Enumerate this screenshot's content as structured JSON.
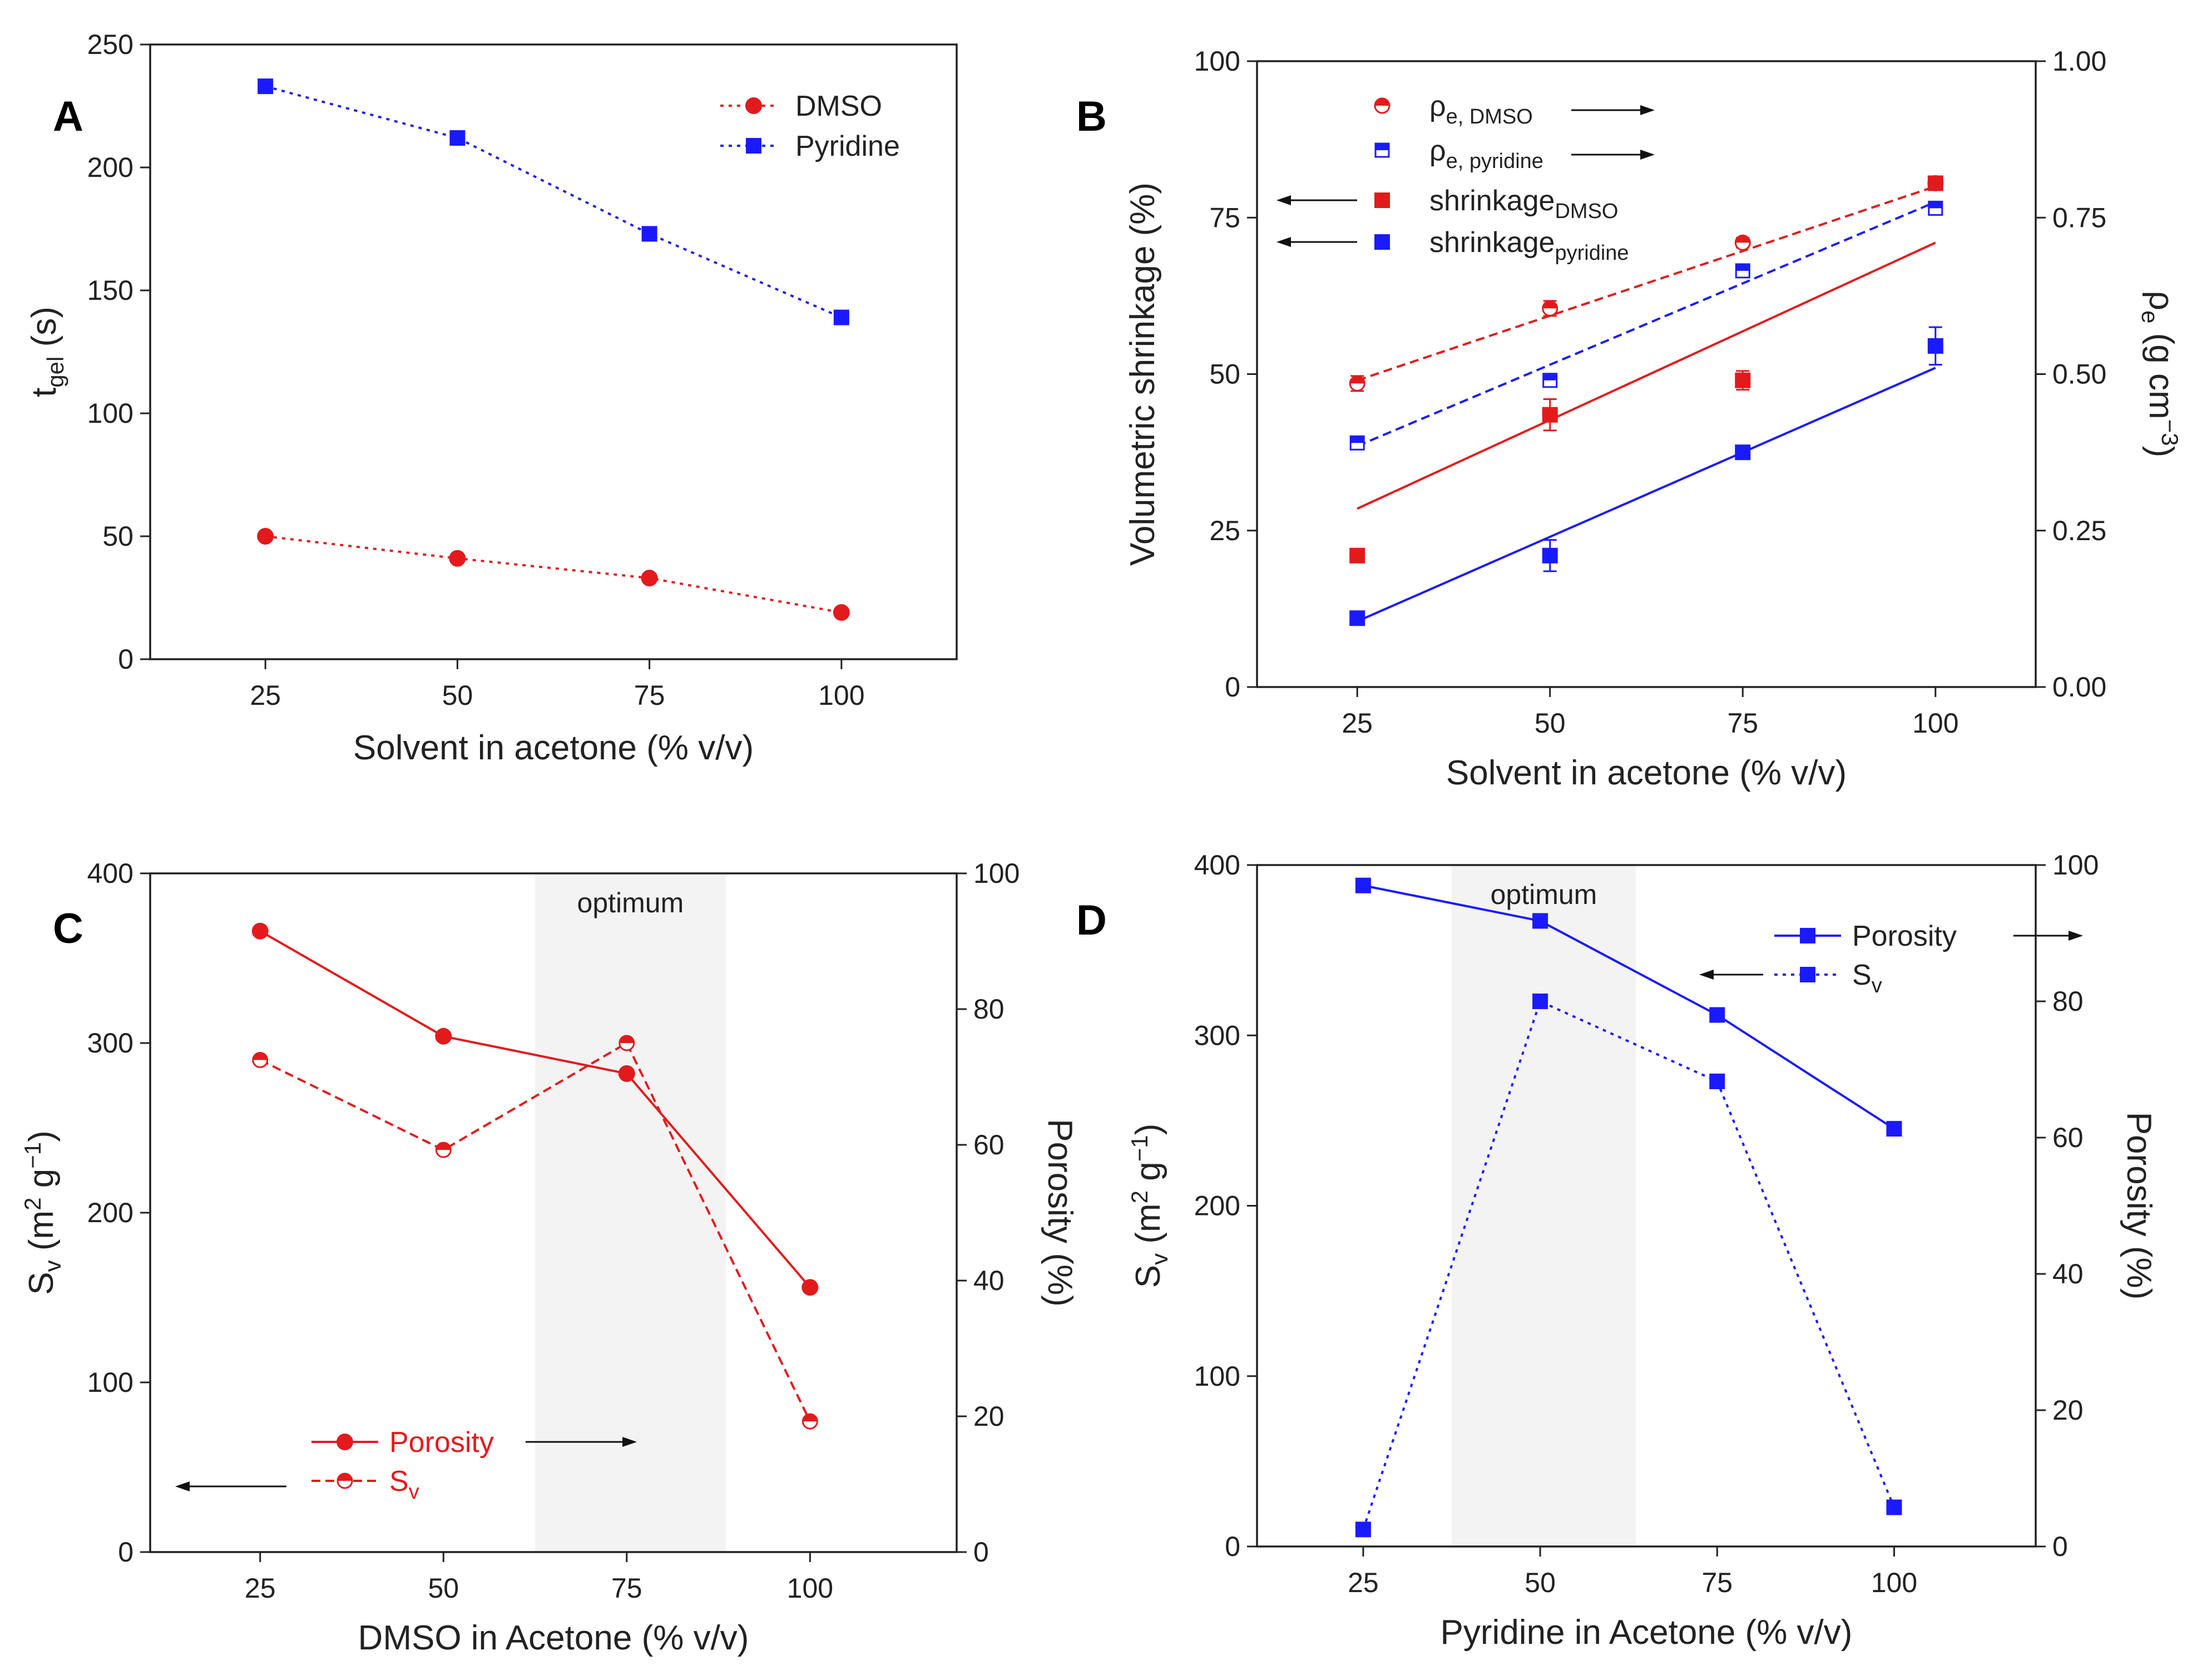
{
  "chart_data": [
    {
      "panel": "A",
      "type": "line",
      "xlabel": "Solvent in acetone (% v/v)",
      "ylabel": "t",
      "ylabel_sub": "gel",
      "ylabel_suffix": " (s)",
      "xlim": [
        10,
        115
      ],
      "ylim": [
        0,
        250
      ],
      "x_ticks": [
        "25",
        "50",
        "75",
        "100"
      ],
      "y_ticks": [
        "0",
        "50",
        "100",
        "150",
        "200",
        "250"
      ],
      "legend_position": "top-right",
      "series": [
        {
          "name": "DMSO",
          "color": "#e31a1c",
          "marker": "circle",
          "line": "dotted",
          "x": [
            25,
            50,
            75,
            100
          ],
          "y": [
            50,
            41,
            33,
            19
          ]
        },
        {
          "name": "Pyridine",
          "color": "#1a1aff",
          "marker": "square",
          "line": "dotted",
          "x": [
            25,
            50,
            75,
            100
          ],
          "y": [
            233,
            212,
            173,
            139
          ]
        }
      ]
    },
    {
      "panel": "B",
      "type": "scatter",
      "xlabel": "Solvent in acetone (% v/v)",
      "ylabel_left": "Volumetric shrinkage (%)",
      "ylabel_right": "ρ",
      "ylabel_right_sub": "e",
      "ylabel_right_suffix": " (g cm",
      "ylabel_right_exp": "−3",
      "ylabel_right_close": ")",
      "xlim": [
        12,
        113
      ],
      "ylim_left": [
        0,
        100
      ],
      "ylim_right": [
        0,
        1
      ],
      "x_ticks": [
        "25",
        "50",
        "75",
        "100"
      ],
      "y_ticks_left": [
        "0",
        "25",
        "50",
        "75",
        "100"
      ],
      "y_ticks_right": [
        "0.00",
        "0.25",
        "0.50",
        "0.75",
        "1.00"
      ],
      "legend_position": "top-left",
      "series": [
        {
          "name": "ρ",
          "name_sub": "e, DMSO",
          "axis": "right",
          "color": "#e31a1c",
          "marker": "half-circle",
          "fit": "dashed",
          "x": [
            25,
            50,
            75,
            100
          ],
          "y": [
            0.485,
            0.605,
            0.71,
            0.805
          ],
          "err": [
            0.012,
            0.012,
            0.008,
            0.006
          ],
          "fit_y": [
            0.49,
            0.8
          ]
        },
        {
          "name": "ρ",
          "name_sub": "e, pyridine",
          "axis": "right",
          "color": "#1a1aff",
          "marker": "half-square",
          "fit": "dashed",
          "x": [
            25,
            50,
            75,
            100
          ],
          "y": [
            0.39,
            0.49,
            0.665,
            0.765
          ],
          "err": [
            0.006,
            0.006,
            0.008,
            0.006
          ],
          "fit_y": [
            0.385,
            0.775
          ]
        },
        {
          "name": "shrinkage",
          "name_sub": "DMSO",
          "axis": "left",
          "color": "#e31a1c",
          "marker": "square",
          "fit": "solid",
          "x": [
            25,
            50,
            75,
            100
          ],
          "y": [
            21,
            43.5,
            49,
            80.5
          ],
          "err": [
            1,
            2.5,
            1.5,
            1
          ],
          "fit_y": [
            28.5,
            71
          ]
        },
        {
          "name": "shrinkage",
          "name_sub": "pyridine",
          "axis": "left",
          "color": "#1a1aff",
          "marker": "square",
          "fit": "solid",
          "x": [
            25,
            50,
            75,
            100
          ],
          "y": [
            11,
            21,
            37.5,
            54.5
          ],
          "err": [
            0.8,
            2.5,
            1,
            3
          ],
          "fit_y": [
            10.5,
            51
          ]
        }
      ]
    },
    {
      "panel": "C",
      "type": "line",
      "xlabel": "DMSO in Acetone (% v/v)",
      "ylabel_left": "S",
      "ylabel_left_sub": "v",
      "ylabel_left_suffix": " (m",
      "ylabel_left_exp1": "2",
      "ylabel_left_mid": " g",
      "ylabel_left_exp2": "−1",
      "ylabel_left_close": ")",
      "ylabel_right": "Porosity (%)",
      "xlim": [
        10,
        120
      ],
      "ylim_left": [
        0,
        400
      ],
      "ylim_right": [
        0,
        100
      ],
      "x_ticks": [
        "25",
        "50",
        "75",
        "100"
      ],
      "y_ticks_left": [
        "0",
        "100",
        "200",
        "300",
        "400"
      ],
      "y_ticks_right": [
        "0",
        "20",
        "40",
        "60",
        "80",
        "100"
      ],
      "optimum_label": "optimum",
      "optimum_range": [
        62.5,
        88.5
      ],
      "legend_position": "bottom-left",
      "series": [
        {
          "name": "Porosity",
          "axis": "right",
          "color": "#e31a1c",
          "marker": "circle",
          "line": "solid",
          "x": [
            25,
            50,
            75,
            100
          ],
          "y": [
            91.5,
            76,
            70.5,
            39
          ]
        },
        {
          "name": "S",
          "name_sub": "v",
          "axis": "left",
          "color": "#e31a1c",
          "marker": "half-circle",
          "line": "dashed",
          "x": [
            25,
            50,
            75,
            100
          ],
          "y": [
            290,
            237,
            300,
            77
          ]
        }
      ]
    },
    {
      "panel": "D",
      "type": "line",
      "xlabel": "Pyridine in Acetone (% v/v)",
      "ylabel_left": "S",
      "ylabel_left_sub": "v",
      "ylabel_left_suffix": " (m",
      "ylabel_left_exp1": "2",
      "ylabel_left_mid": " g",
      "ylabel_left_exp2": "−1",
      "ylabel_left_close": ")",
      "ylabel_right": "Porosity (%)",
      "xlim": [
        10,
        120
      ],
      "ylim_left": [
        0,
        400
      ],
      "ylim_right": [
        0,
        100
      ],
      "x_ticks": [
        "25",
        "50",
        "75",
        "100"
      ],
      "y_ticks_left": [
        "0",
        "100",
        "200",
        "300",
        "400"
      ],
      "y_ticks_right": [
        "0",
        "20",
        "40",
        "60",
        "80",
        "100"
      ],
      "optimum_label": "optimum",
      "optimum_range": [
        37.5,
        63.5
      ],
      "legend_position": "top-right",
      "series": [
        {
          "name": "Porosity",
          "axis": "right",
          "color": "#1a1aff",
          "marker": "square",
          "line": "solid",
          "x": [
            25,
            50,
            75,
            100
          ],
          "y": [
            97,
            91.8,
            78,
            61.3
          ]
        },
        {
          "name": "S",
          "name_sub": "v",
          "axis": "left",
          "color": "#1a1aff",
          "marker": "square",
          "line": "dotted",
          "x": [
            25,
            50,
            75,
            100
          ],
          "y": [
            10,
            320,
            273,
            23
          ]
        }
      ]
    }
  ]
}
